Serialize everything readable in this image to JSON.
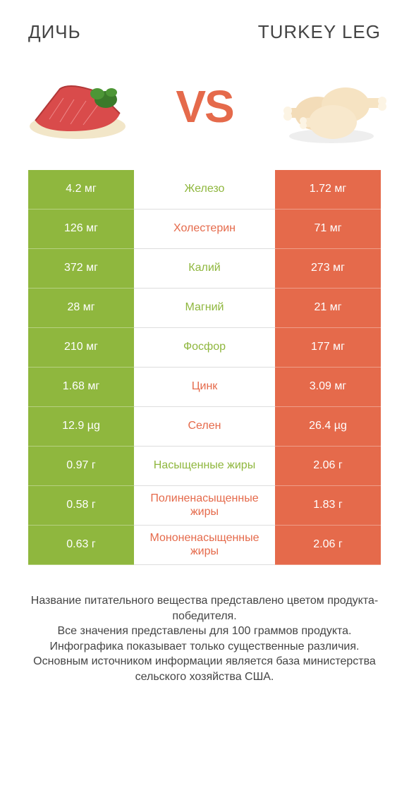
{
  "colors": {
    "green": "#8fb73e",
    "orange": "#e56a4b",
    "text": "#444444",
    "row_border": "#dddddd",
    "white": "#ffffff"
  },
  "header": {
    "left_title": "ДИЧЬ",
    "right_title": "TURKEY LEG",
    "vs_label": "VS"
  },
  "comparison": {
    "type": "infographic-table",
    "left_color": "#8fb73e",
    "right_color": "#e56a4b",
    "rows": [
      {
        "nutrient": "Железо",
        "left": "4.2 мг",
        "right": "1.72 мг",
        "winner": "left"
      },
      {
        "nutrient": "Холестерин",
        "left": "126 мг",
        "right": "71 мг",
        "winner": "right"
      },
      {
        "nutrient": "Калий",
        "left": "372 мг",
        "right": "273 мг",
        "winner": "left"
      },
      {
        "nutrient": "Магний",
        "left": "28 мг",
        "right": "21 мг",
        "winner": "left"
      },
      {
        "nutrient": "Фосфор",
        "left": "210 мг",
        "right": "177 мг",
        "winner": "left"
      },
      {
        "nutrient": "Цинк",
        "left": "1.68 мг",
        "right": "3.09 мг",
        "winner": "right"
      },
      {
        "nutrient": "Селен",
        "left": "12.9 µg",
        "right": "26.4 µg",
        "winner": "right"
      },
      {
        "nutrient": "Насыщенные жиры",
        "left": "0.97 г",
        "right": "2.06 г",
        "winner": "left"
      },
      {
        "nutrient": "Полиненасыщенные жиры",
        "left": "0.58 г",
        "right": "1.83 г",
        "winner": "right"
      },
      {
        "nutrient": "Мононенасыщенные жиры",
        "left": "0.63 г",
        "right": "2.06 г",
        "winner": "right"
      }
    ]
  },
  "footer": {
    "text": "Название питательного вещества представлено цветом продукта-победителя.\nВсе значения представлены для 100 граммов продукта.\nИнфографика показывает только существенные различия.\nОсновным источником информации является база министерства сельского хозяйства США."
  }
}
